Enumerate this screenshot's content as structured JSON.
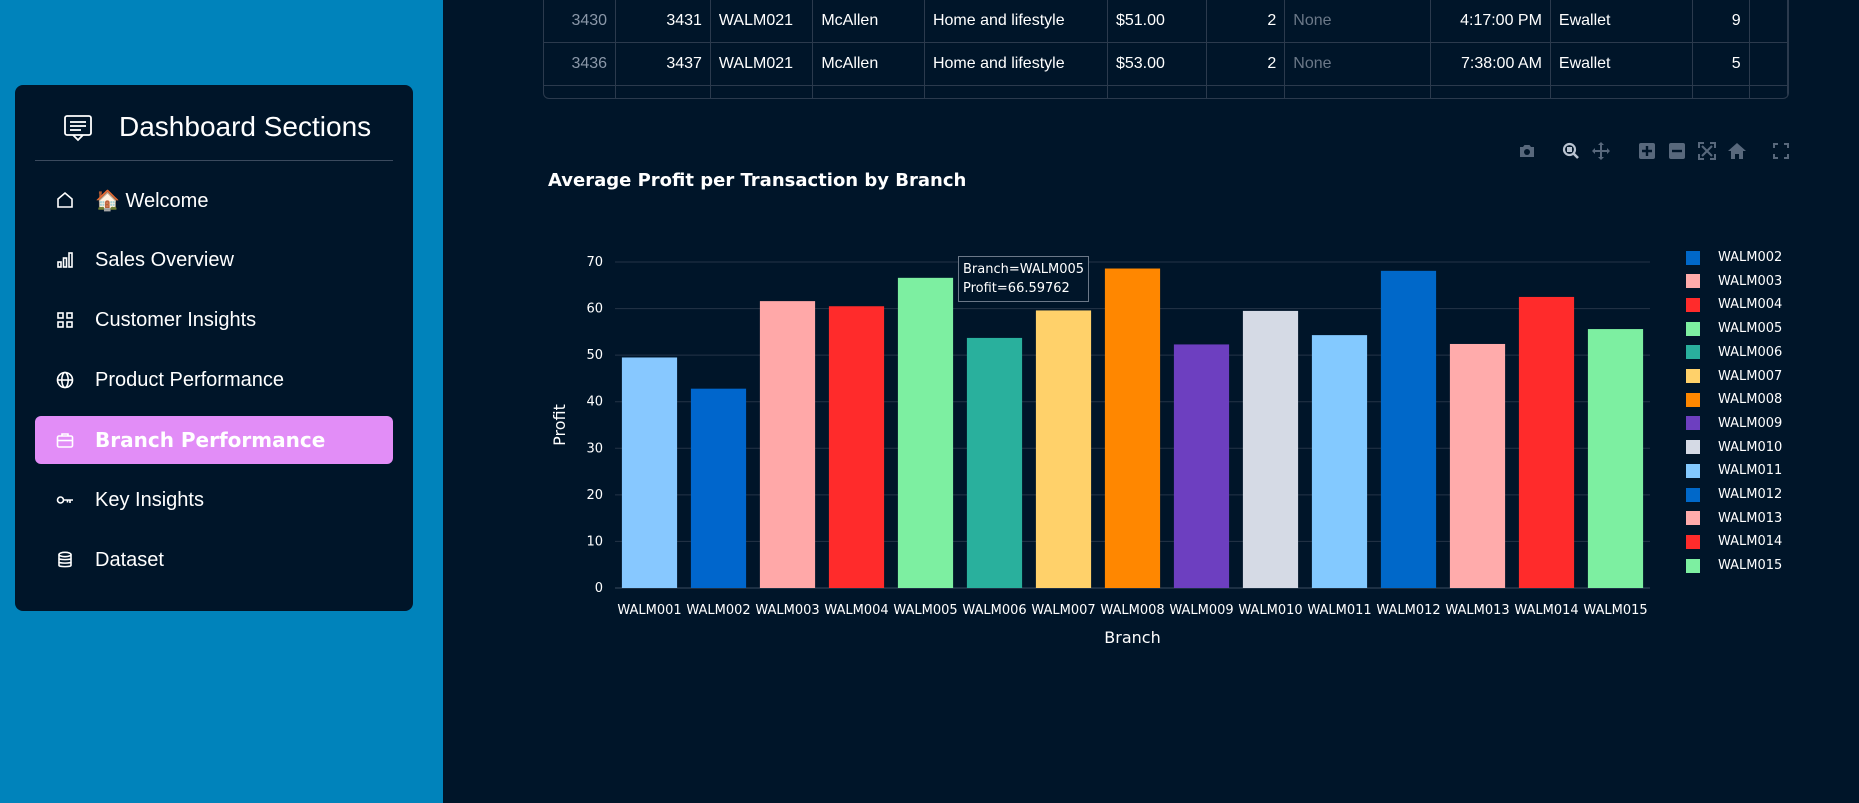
{
  "sidebar": {
    "title": "Dashboard Sections",
    "items": [
      {
        "label": "🏠 Welcome",
        "icon": "home-icon"
      },
      {
        "label": "Sales Overview",
        "icon": "bar-chart-icon"
      },
      {
        "label": "Customer Insights",
        "icon": "grid-icon"
      },
      {
        "label": "Product Performance",
        "icon": "globe-icon"
      },
      {
        "label": "Branch Performance",
        "icon": "briefcase-icon",
        "active": true
      },
      {
        "label": "Key Insights",
        "icon": "key-icon"
      },
      {
        "label": "Dataset",
        "icon": "database-icon"
      }
    ],
    "active_color": "#e28df7"
  },
  "table": {
    "rows": [
      [
        "3430",
        "3431",
        "WALM021",
        "McAllen",
        "Home and lifestyle",
        "$51.00",
        "2",
        "None",
        "4:17:00 PM",
        "Ewallet",
        "9"
      ],
      [
        "3436",
        "3437",
        "WALM021",
        "McAllen",
        "Home and lifestyle",
        "$53.00",
        "2",
        "None",
        "7:38:00 AM",
        "Ewallet",
        "5"
      ]
    ]
  },
  "modebar": {
    "icons": [
      "camera-icon",
      "zoom-icon",
      "pan-icon",
      "zoom-in-icon",
      "zoom-out-icon",
      "autoscale-icon",
      "reset-axes-icon",
      "fullscreen-icon"
    ]
  },
  "tooltip": {
    "line1": "Branch=WALM005",
    "line2": "Profit=66.59762"
  },
  "chart_data": {
    "type": "bar",
    "title": "Average Profit per Transaction by Branch",
    "xlabel": "Branch",
    "ylabel": "Profit",
    "ylim": [
      0,
      70
    ],
    "yticks": [
      0,
      10,
      20,
      30,
      40,
      50,
      60,
      70
    ],
    "grid": true,
    "legend_position": "right",
    "categories": [
      "WALM001",
      "WALM002",
      "WALM003",
      "WALM004",
      "WALM005",
      "WALM006",
      "WALM007",
      "WALM008",
      "WALM009",
      "WALM010",
      "WALM011",
      "WALM012",
      "WALM013",
      "WALM014",
      "WALM015"
    ],
    "values": [
      49.5,
      42.8,
      61.6,
      60.5,
      66.6,
      53.7,
      59.6,
      68.6,
      52.3,
      59.5,
      54.3,
      68.1,
      52.4,
      62.5,
      55.6
    ],
    "colors": [
      "#87c8ff",
      "#0066cc",
      "#ffa8a8",
      "#ff2b2b",
      "#7defa1",
      "#29b09d",
      "#ffd16a",
      "#ff8700",
      "#6d3fc0",
      "#d5dae5",
      "#83c9ff",
      "#0068c9",
      "#ffabab",
      "#ff2b2b",
      "#7defa1"
    ],
    "legend": [
      {
        "name": "WALM002",
        "color": "#0068c9"
      },
      {
        "name": "WALM003",
        "color": "#ffabab"
      },
      {
        "name": "WALM004",
        "color": "#ff2b2b"
      },
      {
        "name": "WALM005",
        "color": "#7defa1"
      },
      {
        "name": "WALM006",
        "color": "#29b09d"
      },
      {
        "name": "WALM007",
        "color": "#ffd16a"
      },
      {
        "name": "WALM008",
        "color": "#ff8700"
      },
      {
        "name": "WALM009",
        "color": "#6d3fc0"
      },
      {
        "name": "WALM010",
        "color": "#d5dae5"
      },
      {
        "name": "WALM011",
        "color": "#83c9ff"
      },
      {
        "name": "WALM012",
        "color": "#0068c9"
      },
      {
        "name": "WALM013",
        "color": "#ffabab"
      },
      {
        "name": "WALM014",
        "color": "#ff2b2b"
      },
      {
        "name": "WALM015",
        "color": "#7defa1"
      }
    ]
  }
}
